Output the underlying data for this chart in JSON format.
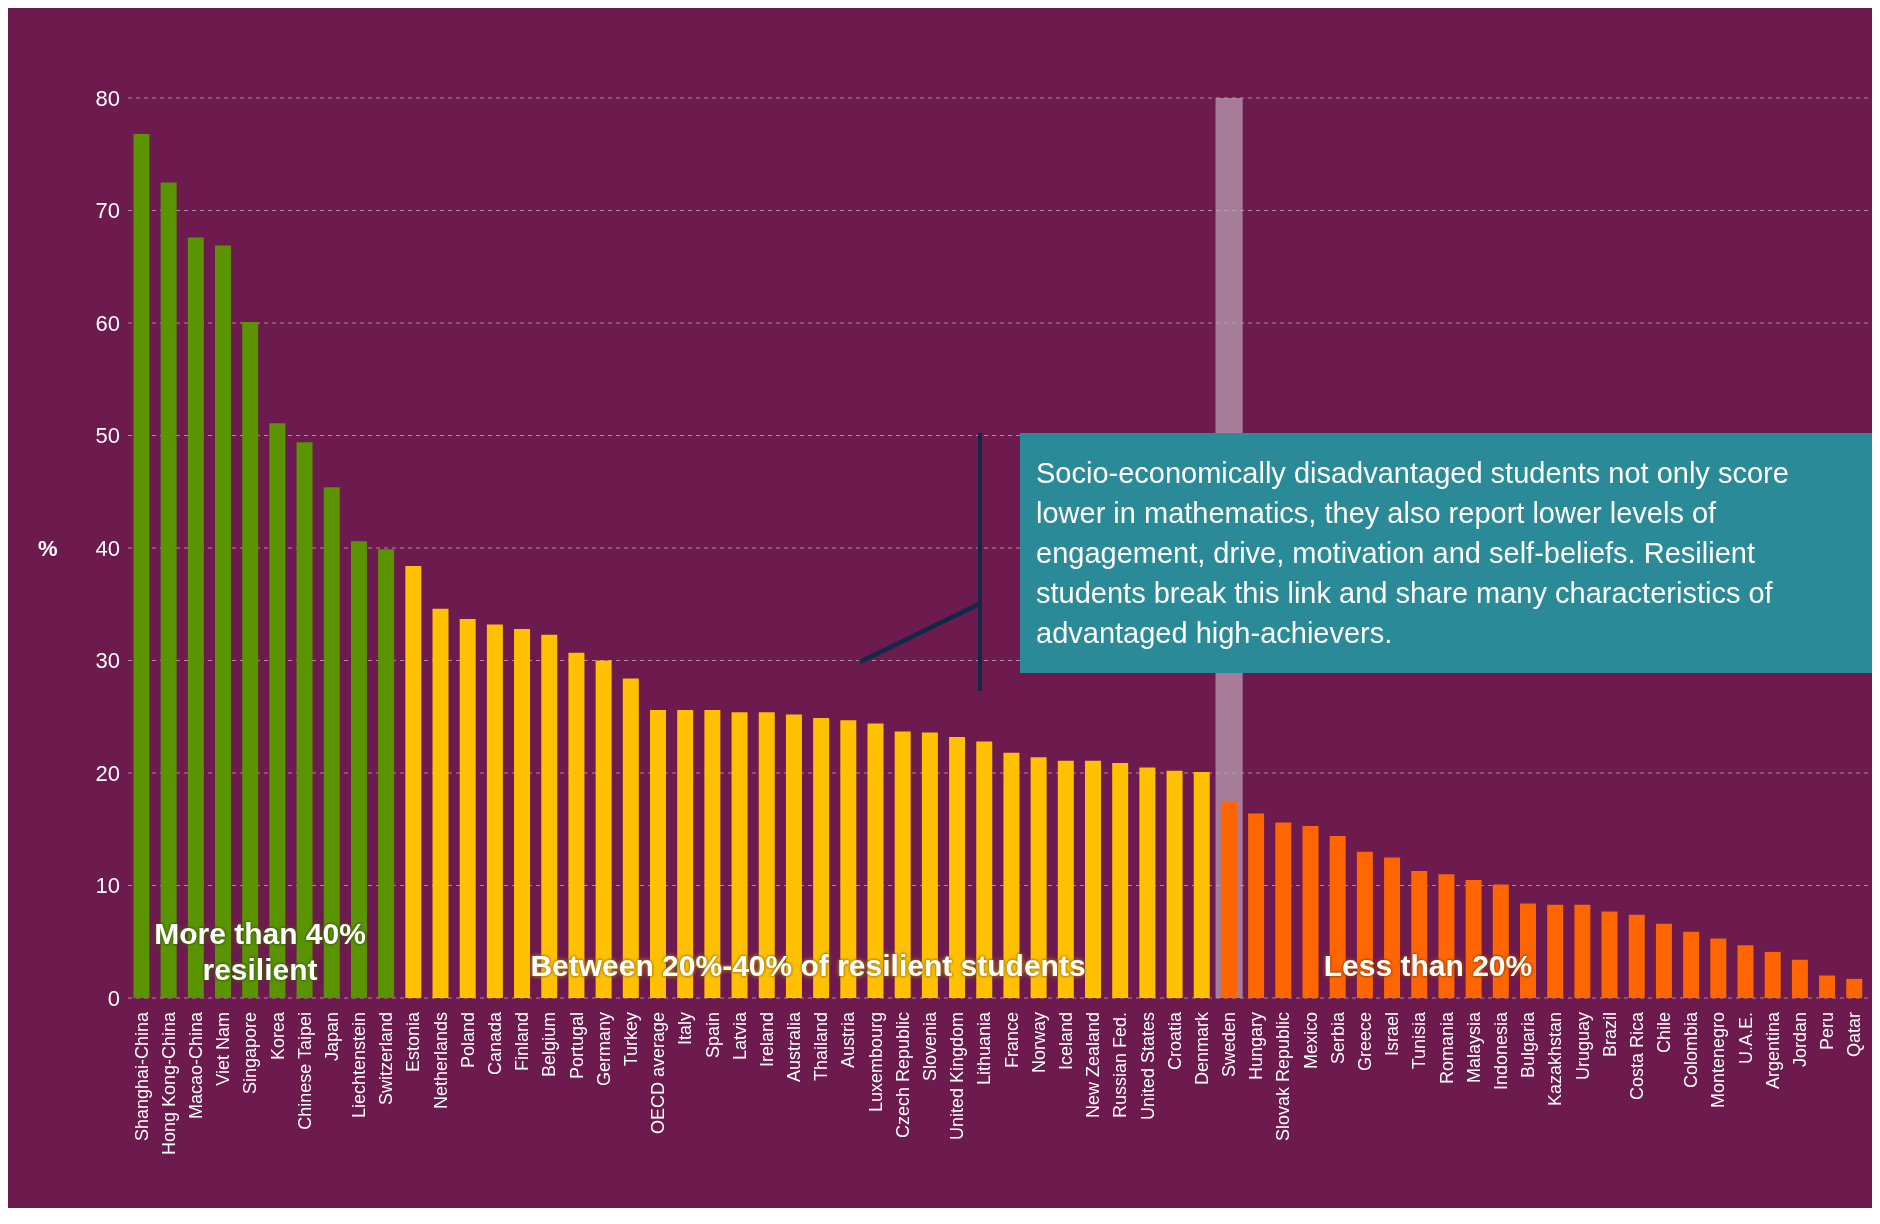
{
  "chart_data": {
    "type": "bar",
    "ylabel": "%",
    "categories": [
      "Shanghai-China",
      "Hong Kong-China",
      "Macao-China",
      "Viet Nam",
      "Singapore",
      "Korea",
      "Chinese Taipei",
      "Japan",
      "Liechtenstein",
      "Switzerland",
      "Estonia",
      "Netherlands",
      "Poland",
      "Canada",
      "Finland",
      "Belgium",
      "Portugal",
      "Germany",
      "Turkey",
      "OECD average",
      "Italy",
      "Spain",
      "Latvia",
      "Ireland",
      "Australia",
      "Thailand",
      "Austria",
      "Luxembourg",
      "Czech Republic",
      "Slovenia",
      "United Kingdom",
      "Lithuania",
      "France",
      "Norway",
      "Iceland",
      "New Zealand",
      "Russian Fed.",
      "United States",
      "Croatia",
      "Denmark",
      "Sweden",
      "Hungary",
      "Slovak Republic",
      "Mexico",
      "Serbia",
      "Greece",
      "Israel",
      "Tunisia",
      "Romania",
      "Malaysia",
      "Indonesia",
      "Bulgaria",
      "Kazakhstan",
      "Uruguay",
      "Brazil",
      "Costa Rica",
      "Chile",
      "Colombia",
      "Montenegro",
      "U.A.E.",
      "Argentina",
      "Jordan",
      "Peru",
      "Qatar"
    ],
    "values": [
      76.8,
      72.5,
      67.6,
      66.9,
      60.1,
      51.1,
      49.4,
      45.4,
      40.6,
      39.9,
      38.4,
      34.6,
      33.7,
      33.2,
      32.8,
      32.3,
      30.7,
      30.0,
      28.4,
      25.6,
      25.6,
      25.6,
      25.4,
      25.4,
      25.2,
      24.9,
      24.7,
      24.4,
      23.7,
      23.6,
      23.2,
      22.8,
      21.8,
      21.4,
      21.1,
      21.1,
      20.9,
      20.5,
      20.2,
      20.1,
      17.5,
      16.4,
      15.6,
      15.3,
      14.4,
      13.0,
      12.5,
      11.3,
      11.0,
      10.5,
      10.1,
      8.4,
      8.3,
      8.3,
      7.7,
      7.4,
      6.6,
      5.9,
      5.3,
      4.7,
      4.1,
      3.4,
      2.0,
      1.7
    ],
    "colors": [
      "#5a9400",
      "#5a9400",
      "#5a9400",
      "#5a9400",
      "#5a9400",
      "#5a9400",
      "#5a9400",
      "#5a9400",
      "#5a9400",
      "#5a9400",
      "#ffc000",
      "#ffc000",
      "#ffc000",
      "#ffc000",
      "#ffc000",
      "#ffc000",
      "#ffc000",
      "#ffc000",
      "#ffc000",
      "#ffc000",
      "#ffc000",
      "#ffc000",
      "#ffc000",
      "#ffc000",
      "#ffc000",
      "#ffc000",
      "#ffc000",
      "#ffc000",
      "#ffc000",
      "#ffc000",
      "#ffc000",
      "#ffc000",
      "#ffc000",
      "#ffc000",
      "#ffc000",
      "#ffc000",
      "#ffc000",
      "#ffc000",
      "#ffc000",
      "#ffc000",
      "#ff6600",
      "#ff6600",
      "#ff6600",
      "#ff6600",
      "#ff6600",
      "#ff6600",
      "#ff6600",
      "#ff6600",
      "#ff6600",
      "#ff6600",
      "#ff6600",
      "#ff6600",
      "#ff6600",
      "#ff6600",
      "#ff6600",
      "#ff6600",
      "#ff6600",
      "#ff6600",
      "#ff6600",
      "#ff6600",
      "#ff6600",
      "#ff6600",
      "#ff6600",
      "#ff6600"
    ],
    "ylim": [
      0,
      80
    ],
    "yticks": [
      0,
      10,
      20,
      30,
      40,
      50,
      60,
      70,
      80
    ],
    "grid": "y",
    "bands": [
      {
        "axis": "x",
        "from": "Sweden",
        "to": "Sweden",
        "color": "#c0a6b8"
      }
    ],
    "annotations": [
      "More than 40% resilient",
      "Between 20%-40% of resilient students",
      "Less than 20%",
      "Socio-economically disadvantaged students not only score lower in mathematics, they also report lower levels of engagement, drive, motivation and self-beliefs. Resilient students break this link and share many characteristics of advantaged high-achievers."
    ]
  }
}
